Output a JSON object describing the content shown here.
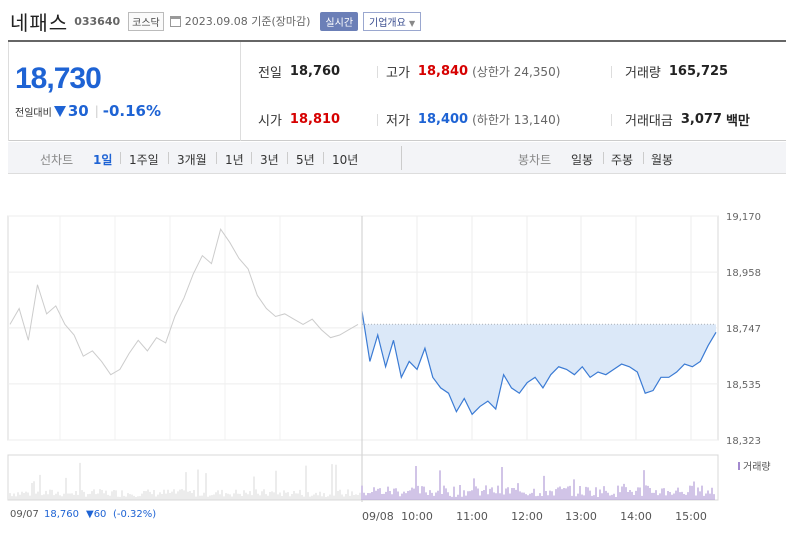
{
  "header": {
    "name": "네패스",
    "code": "033640",
    "market": "코스닥",
    "date": "2023.09.08",
    "basis": "기준(장마감)",
    "realtime_btn": "실시간",
    "company_btn": "기업개요"
  },
  "price": {
    "current": "18,730",
    "change_label": "전일대비",
    "change_value": "30",
    "change_pct": "-0.16%",
    "sep": "|"
  },
  "stats": {
    "prev_close": {
      "label": "전일",
      "value": "18,760"
    },
    "high": {
      "label": "고가",
      "value": "18,840",
      "extra": "(상한가 24,350)"
    },
    "volume": {
      "label": "거래량",
      "value": "165,725"
    },
    "open": {
      "label": "시가",
      "value": "18,810"
    },
    "low": {
      "label": "저가",
      "value": "18,400",
      "extra": "(하한가 13,140)"
    },
    "amount": {
      "label": "거래대금",
      "value": "3,077",
      "unit": "백만"
    }
  },
  "tabs": {
    "line_label": "선차트",
    "line_items": [
      "1일",
      "1주일",
      "3개월",
      "1년",
      "3년",
      "5년",
      "10년"
    ],
    "active": "1일",
    "candle_label": "봉차트",
    "candle_items": [
      "일봉",
      "주봉",
      "월봉"
    ]
  },
  "colors": {
    "up": "#d60000",
    "down": "#1e63d4",
    "today_line": "#3b7bd4",
    "today_fill": "#dbe8f8",
    "prev_line": "#cccccc",
    "volume_today": "#a38acf",
    "volume_prev": "#d9d9d9"
  },
  "chart_data": {
    "type": "line",
    "ylim": [
      18323,
      19170
    ],
    "yticks": [
      19170,
      18958,
      18747,
      18535,
      18323
    ],
    "ytick_labels": [
      "19,170",
      "18,958",
      "18,747",
      "18,535",
      "18,323"
    ],
    "x_ticks": [
      "09/08",
      "10:00",
      "11:00",
      "12:00",
      "13:00",
      "14:00",
      "15:00"
    ],
    "reference_price": 18760,
    "series": [
      {
        "values": [
          18760,
          18820,
          18700,
          18910,
          18800,
          18830,
          18760,
          18720,
          18640,
          18660,
          18620,
          18570,
          18590,
          18650,
          18700,
          18660,
          18710,
          18690,
          18790,
          18860,
          18950,
          19020,
          18990,
          19120,
          19070,
          19010,
          18970,
          18870,
          18820,
          18790,
          18800,
          18780,
          18760,
          18780,
          18740,
          18710,
          18720,
          18740,
          18760
        ]
      },
      {
        "values": [
          18810,
          18620,
          18720,
          18600,
          18700,
          18560,
          18620,
          18590,
          18670,
          18560,
          18520,
          18500,
          18430,
          18480,
          18420,
          18450,
          18470,
          18440,
          18570,
          18520,
          18500,
          18540,
          18560,
          18520,
          18570,
          18600,
          18590,
          18570,
          18600,
          18560,
          18580,
          18570,
          18590,
          18610,
          18600,
          18580,
          18500,
          18510,
          18560,
          18560,
          18580,
          18610,
          18600,
          18620,
          18680,
          18730
        ]
      }
    ],
    "volume_label": "거래량"
  },
  "footer": {
    "prev_date": "09/07",
    "prev_price": "18,760",
    "prev_change": "▼60",
    "prev_pct": "(-0.32%)"
  }
}
